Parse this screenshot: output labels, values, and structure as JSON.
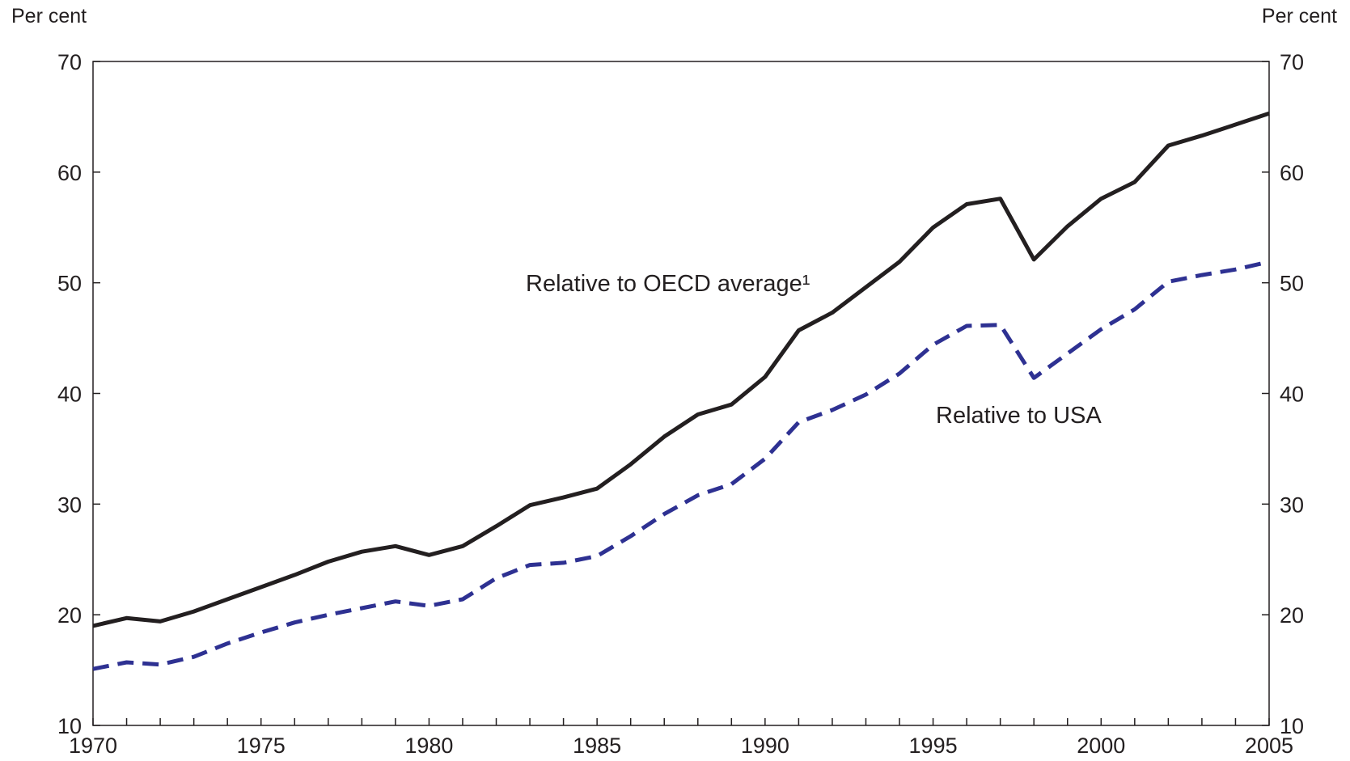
{
  "chart_data": {
    "type": "line",
    "y_unit_left": "Per cent",
    "y_unit_right": "Per cent",
    "ylim": [
      10,
      70
    ],
    "y_ticks": [
      10,
      20,
      30,
      40,
      50,
      60,
      70
    ],
    "xlim": [
      1970,
      2005
    ],
    "x_tick_labels": [
      1970,
      1975,
      1980,
      1985,
      1990,
      1995,
      2000,
      2005
    ],
    "x": [
      1970,
      1971,
      1972,
      1973,
      1974,
      1975,
      1976,
      1977,
      1978,
      1979,
      1980,
      1981,
      1982,
      1983,
      1984,
      1985,
      1986,
      1987,
      1988,
      1989,
      1990,
      1991,
      1992,
      1993,
      1994,
      1995,
      1996,
      1997,
      1998,
      1999,
      2000,
      2001,
      2002,
      2003,
      2004,
      2005
    ],
    "series": [
      {
        "name": "Relative to OECD average¹",
        "style": "solid",
        "color": "#231f20",
        "values": [
          19.0,
          19.7,
          19.4,
          20.3,
          21.4,
          22.5,
          23.6,
          24.8,
          25.7,
          26.2,
          25.4,
          26.2,
          28.0,
          29.9,
          30.6,
          31.4,
          33.6,
          36.1,
          38.1,
          39.0,
          41.5,
          45.7,
          47.3,
          49.6,
          51.9,
          55.0,
          57.1,
          57.6,
          52.1,
          55.1,
          57.6,
          59.1,
          62.4,
          63.3,
          64.3,
          65.3
        ]
      },
      {
        "name": "Relative to USA",
        "style": "dashed",
        "color": "#2e3192",
        "values": [
          15.1,
          15.7,
          15.5,
          16.2,
          17.4,
          18.4,
          19.3,
          20.0,
          20.6,
          21.2,
          20.8,
          21.4,
          23.3,
          24.5,
          24.7,
          25.3,
          27.1,
          29.1,
          30.8,
          31.8,
          34.1,
          37.4,
          38.5,
          39.9,
          41.8,
          44.4,
          46.1,
          46.2,
          41.4,
          43.6,
          45.8,
          47.6,
          50.1,
          50.7,
          51.2,
          51.9
        ]
      }
    ],
    "annotations": [
      {
        "text": "Relative to OECD average¹",
        "series": 0
      },
      {
        "text": "Relative to USA",
        "series": 1
      }
    ],
    "grid": false,
    "legend": "none"
  }
}
